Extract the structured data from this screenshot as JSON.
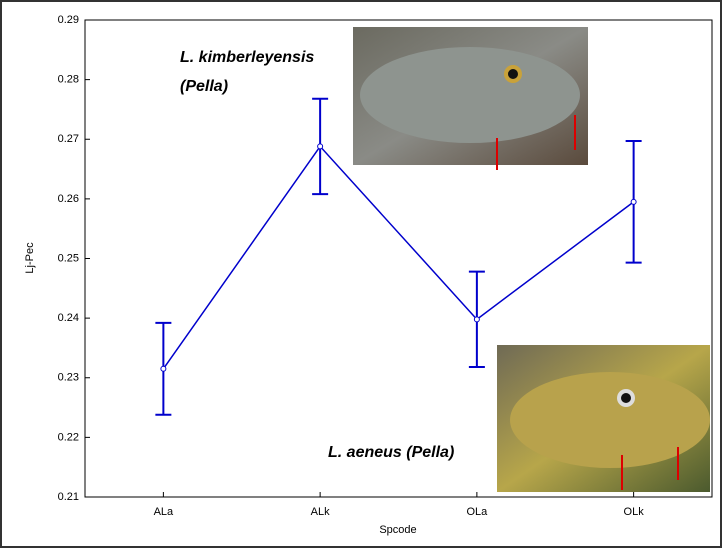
{
  "chart_data": {
    "type": "line",
    "y_label": "Lj-Pec",
    "x_label": "Spcode",
    "categories": [
      "ALa",
      "ALk",
      "OLa",
      "OLk"
    ],
    "series": [
      {
        "color": "#0000cc",
        "values": [
          0.2315,
          0.2688,
          0.2398,
          0.2595
        ],
        "errors": [
          0.0077,
          0.008,
          0.008,
          0.0102
        ]
      }
    ],
    "ylim": [
      0.21,
      0.29
    ],
    "yticks": [
      0.21,
      0.22,
      0.23,
      0.24,
      0.25,
      0.26,
      0.27,
      0.28,
      0.29
    ],
    "annotations": [
      "L. kimberleyensis",
      "(Pella)",
      "L. aeneus (Pella)"
    ]
  }
}
